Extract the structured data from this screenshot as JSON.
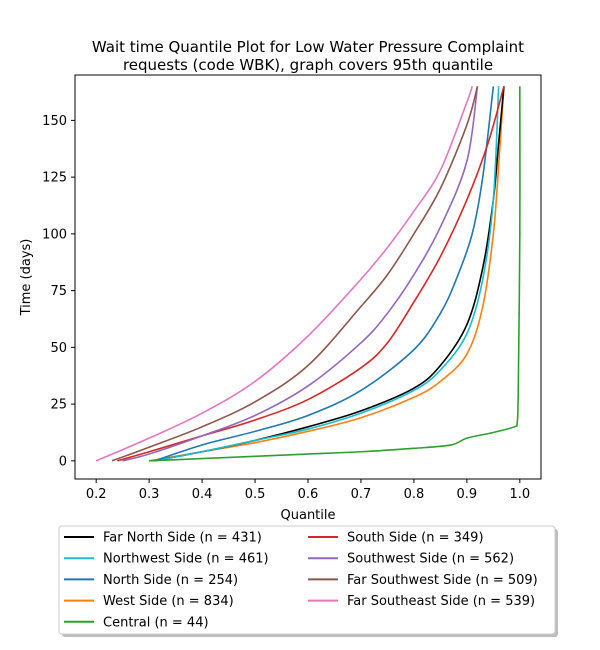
{
  "chart_data": {
    "type": "line",
    "title_lines": [
      "Wait time Quantile Plot for Low Water Pressure Complaint",
      "requests (code WBK), graph covers 95th quantile"
    ],
    "xlabel": "Quantile",
    "ylabel": "Time (days)",
    "xlim": [
      0.16,
      1.04
    ],
    "ylim": [
      -8,
      170
    ],
    "xticks": [
      0.2,
      0.3,
      0.4,
      0.5,
      0.6,
      0.7,
      0.8,
      0.9,
      1.0
    ],
    "xtick_labels": [
      "0.2",
      "0.3",
      "0.4",
      "0.5",
      "0.6",
      "0.7",
      "0.8",
      "0.9",
      "1.0"
    ],
    "yticks": [
      0,
      25,
      50,
      75,
      100,
      125,
      150
    ],
    "ytick_labels": [
      "0",
      "25",
      "50",
      "75",
      "100",
      "125",
      "150"
    ],
    "grid": false,
    "legend_placement": "below plot, two columns",
    "series": [
      {
        "name": "Far North Side (n = 431)",
        "color": "#000000",
        "x": [
          0.31,
          0.4,
          0.5,
          0.6,
          0.7,
          0.8,
          0.85,
          0.9,
          0.93,
          0.95,
          0.96,
          0.97
        ],
        "y": [
          0,
          4,
          9,
          15,
          22,
          32,
          42,
          60,
          85,
          115,
          140,
          165
        ]
      },
      {
        "name": "Northwest Side (n = 461)",
        "color": "#17becf",
        "x": [
          0.31,
          0.4,
          0.5,
          0.6,
          0.7,
          0.8,
          0.85,
          0.9,
          0.93,
          0.95,
          0.96
        ],
        "y": [
          0,
          4,
          9,
          14,
          21,
          31,
          40,
          56,
          80,
          115,
          165
        ]
      },
      {
        "name": "North Side (n = 254)",
        "color": "#1f77b4",
        "x": [
          0.31,
          0.4,
          0.5,
          0.6,
          0.7,
          0.8,
          0.85,
          0.88,
          0.91,
          0.93,
          0.95
        ],
        "y": [
          0,
          7,
          13,
          20,
          31,
          49,
          65,
          80,
          100,
          125,
          165
        ]
      },
      {
        "name": "West Side (n = 834)",
        "color": "#ff7f0e",
        "x": [
          0.3,
          0.4,
          0.5,
          0.6,
          0.7,
          0.8,
          0.85,
          0.9,
          0.93,
          0.95,
          0.96,
          0.97
        ],
        "y": [
          0,
          4,
          8,
          13,
          19,
          28,
          35,
          47,
          68,
          100,
          130,
          165
        ]
      },
      {
        "name": "Central (n = 44)",
        "color": "#2ca02c",
        "x": [
          0.3,
          0.4,
          0.5,
          0.6,
          0.7,
          0.8,
          0.87,
          0.9,
          0.95,
          0.99,
          0.995,
          0.997,
          1.0,
          1.0
        ],
        "y": [
          0,
          1,
          2,
          3,
          4,
          5.5,
          7,
          10,
          12.5,
          15,
          17,
          30,
          100,
          165
        ]
      },
      {
        "name": "South Side (n = 349)",
        "color": "#d62728",
        "x": [
          0.24,
          0.3,
          0.4,
          0.5,
          0.6,
          0.7,
          0.75,
          0.8,
          0.85,
          0.9,
          0.94,
          0.97
        ],
        "y": [
          0,
          4,
          11,
          18,
          27,
          41,
          52,
          70,
          90,
          115,
          140,
          165
        ]
      },
      {
        "name": "Southwest Side (n = 562)",
        "color": "#9467bd",
        "x": [
          0.25,
          0.3,
          0.4,
          0.5,
          0.6,
          0.7,
          0.75,
          0.8,
          0.85,
          0.9,
          0.92
        ],
        "y": [
          0,
          3,
          11,
          20,
          33,
          52,
          65,
          82,
          103,
          132,
          165
        ]
      },
      {
        "name": "Far Southwest Side (n = 509)",
        "color": "#8c564b",
        "x": [
          0.23,
          0.3,
          0.4,
          0.5,
          0.6,
          0.7,
          0.75,
          0.8,
          0.85,
          0.9,
          0.92
        ],
        "y": [
          0,
          6,
          15,
          26,
          42,
          68,
          82,
          100,
          120,
          148,
          165
        ]
      },
      {
        "name": "Far Southeast Side (n = 539)",
        "color": "#e377c2",
        "x": [
          0.2,
          0.3,
          0.4,
          0.5,
          0.6,
          0.7,
          0.75,
          0.8,
          0.85,
          0.9,
          0.91
        ],
        "y": [
          0,
          10,
          21,
          35,
          55,
          80,
          94,
          110,
          128,
          158,
          165
        ]
      }
    ]
  }
}
